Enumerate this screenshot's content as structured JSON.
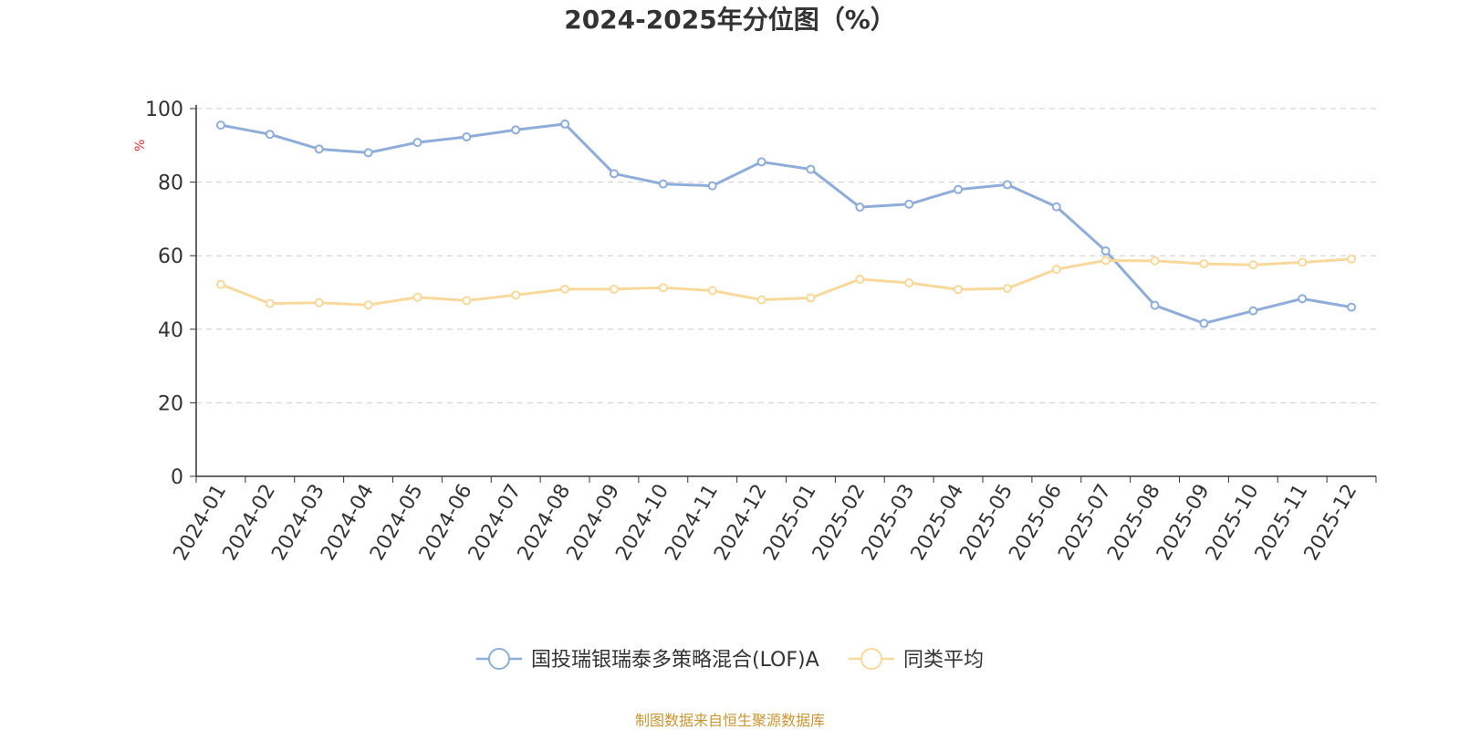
{
  "source_note": "制图数据来自恒生聚源数据库",
  "chart_data": {
    "type": "line",
    "title": "2024-2025年分位图（%）",
    "ylabel": "%",
    "xlabel": "",
    "ylim": [
      0,
      100
    ],
    "yticks": [
      "0",
      "20",
      "40",
      "60",
      "80",
      "100"
    ],
    "grid": true,
    "legend_position": "bottom-center",
    "categories": [
      "2024-01",
      "2024-02",
      "2024-03",
      "2024-04",
      "2024-05",
      "2024-06",
      "2024-07",
      "2024-08",
      "2024-09",
      "2024-10",
      "2024-11",
      "2024-12",
      "2025-01",
      "2025-02",
      "2025-03",
      "2025-04",
      "2025-05",
      "2025-06",
      "2025-07",
      "2025-08",
      "2025-09",
      "2025-10",
      "2025-11",
      "2025-12"
    ],
    "series": [
      {
        "name": "国投瑞银瑞泰多策略混合(LOF)A",
        "color": "#8eadd9",
        "values": [
          95.5,
          93.0,
          89.0,
          88.0,
          90.8,
          92.3,
          94.2,
          95.8,
          82.3,
          79.5,
          79.0,
          85.5,
          83.5,
          73.2,
          74.0,
          78.0,
          79.3,
          73.3,
          61.3,
          46.5,
          41.6,
          45.0,
          48.3,
          46.0
        ]
      },
      {
        "name": "同类平均",
        "color": "#f8d99b",
        "values": [
          52.2,
          47.0,
          47.2,
          46.6,
          48.7,
          47.8,
          49.3,
          50.9,
          50.9,
          51.3,
          50.5,
          48.0,
          48.5,
          53.6,
          52.6,
          50.8,
          51.1,
          56.3,
          58.7,
          58.6,
          57.8,
          57.5,
          58.2,
          59.1
        ]
      }
    ]
  }
}
